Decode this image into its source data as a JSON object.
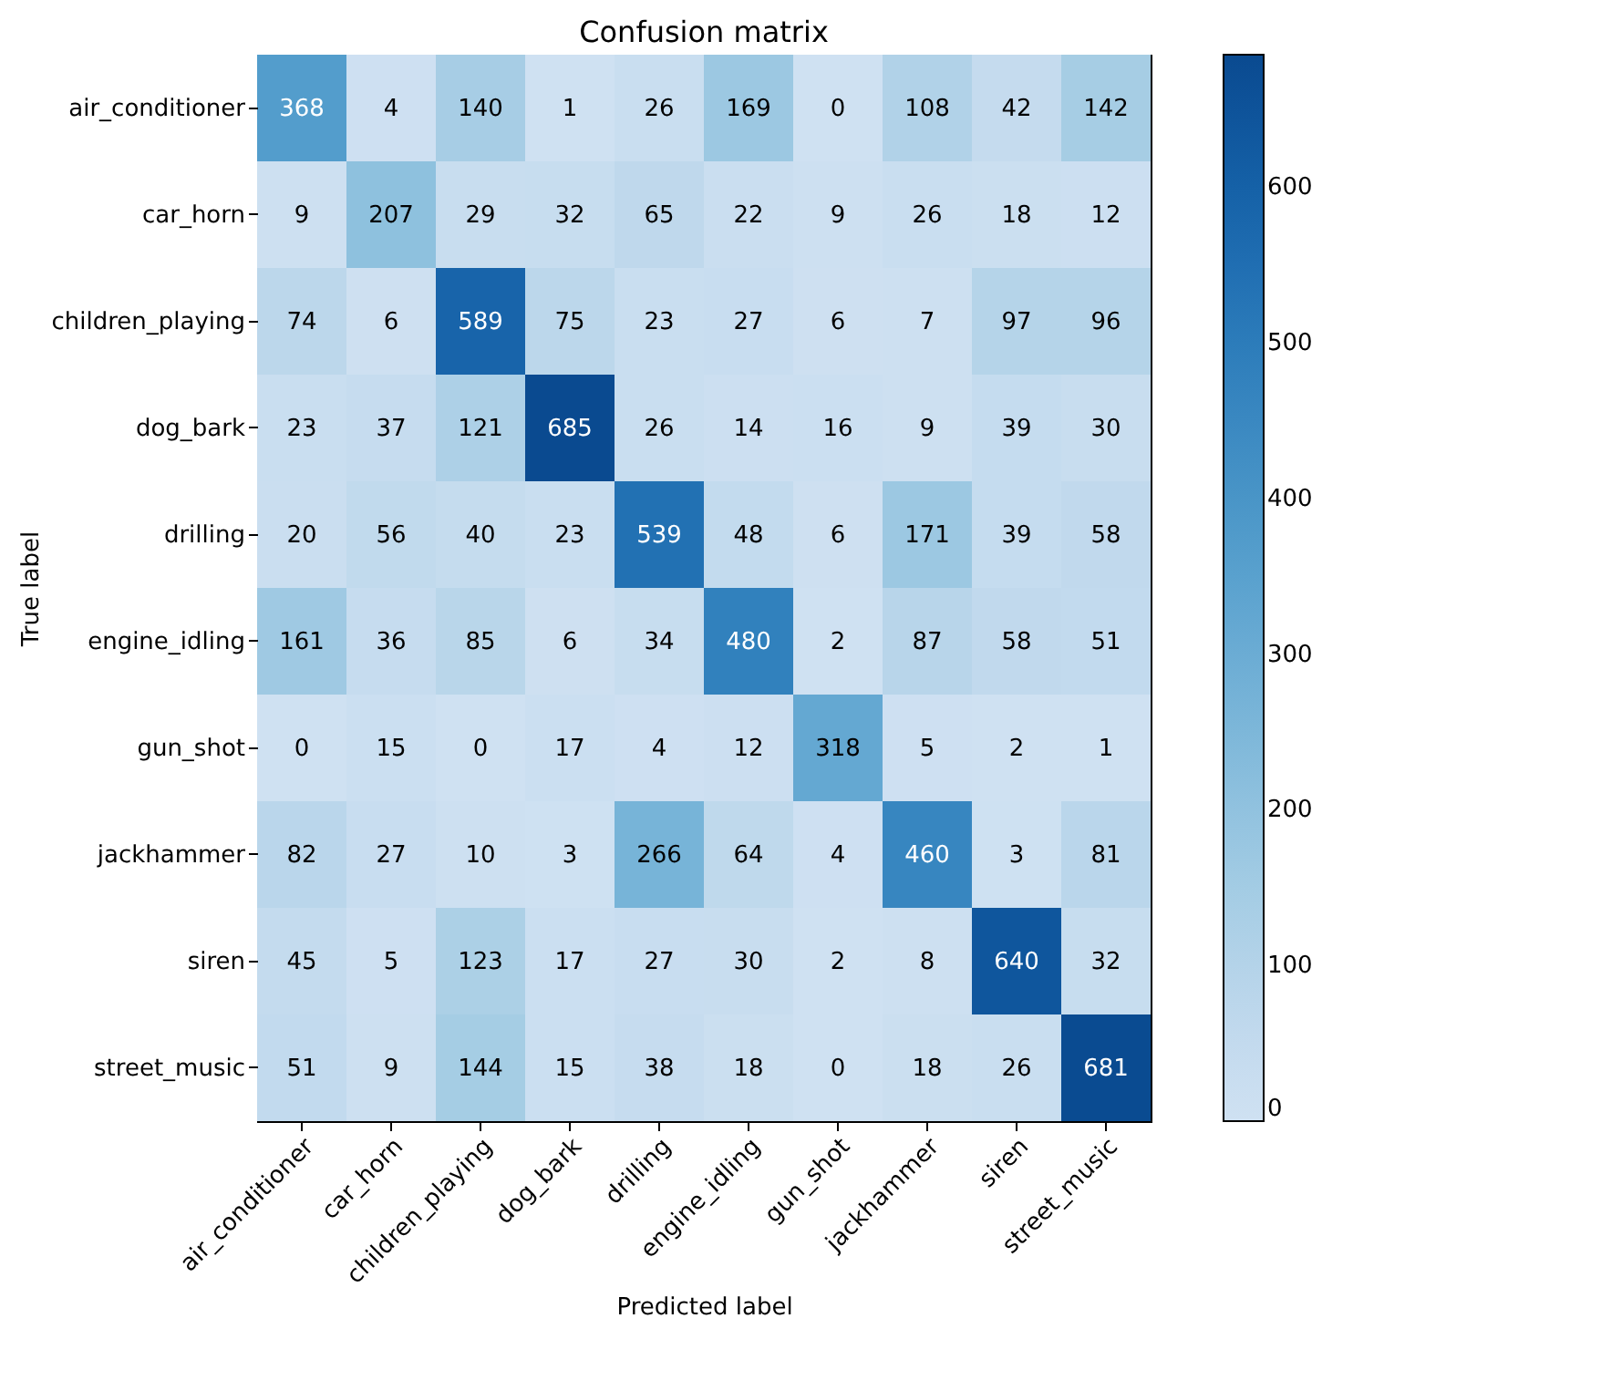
{
  "chart_data": {
    "type": "heatmap",
    "title": "Confusion matrix",
    "xlabel": "Predicted label",
    "ylabel": "True label",
    "categories": [
      "air_conditioner",
      "car_horn",
      "children_playing",
      "dog_bark",
      "drilling",
      "engine_idling",
      "gun_shot",
      "jackhammer",
      "siren",
      "street_music"
    ],
    "y_categories": [
      "air_conditioner",
      "car_horn",
      "children_playing",
      "dog_bark",
      "drilling",
      "engine_idling",
      "gun_shot",
      "jackhammer",
      "siren",
      "street_music"
    ],
    "cells": [
      [
        368,
        4,
        140,
        1,
        26,
        169,
        0,
        108,
        42,
        142
      ],
      [
        9,
        207,
        29,
        32,
        65,
        22,
        9,
        26,
        18,
        12
      ],
      [
        74,
        6,
        589,
        75,
        23,
        27,
        6,
        7,
        97,
        96
      ],
      [
        23,
        37,
        121,
        685,
        26,
        14,
        16,
        9,
        39,
        30
      ],
      [
        20,
        56,
        40,
        23,
        539,
        48,
        6,
        171,
        39,
        58
      ],
      [
        161,
        36,
        85,
        6,
        34,
        480,
        2,
        87,
        58,
        51
      ],
      [
        0,
        15,
        0,
        17,
        4,
        12,
        318,
        5,
        2,
        1
      ],
      [
        82,
        27,
        10,
        3,
        266,
        64,
        4,
        460,
        3,
        81
      ],
      [
        45,
        5,
        123,
        17,
        27,
        30,
        2,
        8,
        640,
        32
      ],
      [
        51,
        9,
        144,
        15,
        38,
        18,
        0,
        18,
        26,
        681
      ]
    ],
    "clim": [
      0,
      685
    ],
    "cticks": [
      0,
      100,
      200,
      300,
      400,
      500,
      600
    ],
    "data_labels": true
  }
}
